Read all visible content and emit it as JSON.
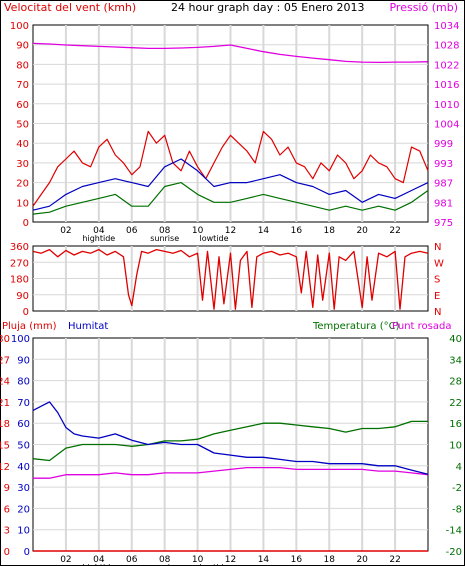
{
  "header": {
    "left_label": "Velocitat del vent (kmh)",
    "title": "24 hour graph day : 05 Enero 2013",
    "right_label": "Pressió (mb)"
  },
  "colors": {
    "red": "#e00000",
    "blue": "#0000c0",
    "green": "#007000",
    "magenta": "#e000e0",
    "grid": "#d8d8d8",
    "grid_dark": "#bfbfbf"
  },
  "x_axis": {
    "hour_labels": [
      "02",
      "04",
      "06",
      "08",
      "10",
      "12",
      "14",
      "16",
      "18",
      "20",
      "22"
    ],
    "tide_labels": [
      {
        "text": "hightide",
        "hour": 4
      },
      {
        "text": "sunrise",
        "hour": 8
      },
      {
        "text": "lowtide",
        "hour": 11
      }
    ]
  },
  "chart_data": [
    {
      "type": "line",
      "name": "wind-pressure",
      "xlim": [
        0,
        24
      ],
      "left_axis": {
        "label": "Velocitat del vent (kmh)",
        "ylim": [
          0,
          100
        ],
        "ticks": [
          0,
          10,
          20,
          30,
          40,
          50,
          60,
          70,
          80,
          90,
          100
        ]
      },
      "right_axis": {
        "label": "Pressió (mb)",
        "ylim": [
          975,
          1034
        ],
        "ticks": [
          975,
          981,
          987,
          993,
          999,
          1004,
          1010,
          1016,
          1022,
          1028,
          1034
        ]
      },
      "series": [
        {
          "role": "wind-gust",
          "color": "red",
          "axis": "left",
          "x": [
            0,
            0.5,
            1,
            1.5,
            2,
            2.5,
            3,
            3.5,
            4,
            4.5,
            5,
            5.5,
            6,
            6.5,
            7,
            7.5,
            8,
            8.5,
            9,
            9.5,
            10,
            10.5,
            11,
            11.5,
            12,
            12.5,
            13,
            13.5,
            14,
            14.5,
            15,
            15.5,
            16,
            16.5,
            17,
            17.5,
            18,
            18.5,
            19,
            19.5,
            20,
            20.5,
            21,
            21.5,
            22,
            22.5,
            23,
            23.5,
            24
          ],
          "values": [
            8,
            14,
            20,
            28,
            32,
            36,
            30,
            28,
            38,
            42,
            34,
            30,
            24,
            28,
            46,
            40,
            44,
            30,
            26,
            36,
            28,
            22,
            30,
            38,
            44,
            40,
            36,
            30,
            46,
            42,
            34,
            38,
            30,
            28,
            22,
            30,
            26,
            34,
            30,
            22,
            26,
            34,
            30,
            28,
            22,
            20,
            38,
            36,
            26
          ]
        },
        {
          "role": "wind-average",
          "color": "blue",
          "axis": "left",
          "x": [
            0,
            1,
            2,
            3,
            4,
            5,
            6,
            7,
            8,
            9,
            10,
            11,
            12,
            13,
            14,
            15,
            16,
            17,
            18,
            19,
            20,
            21,
            22,
            23,
            24
          ],
          "values": [
            6,
            8,
            14,
            18,
            20,
            22,
            20,
            18,
            28,
            32,
            26,
            18,
            20,
            20,
            22,
            24,
            20,
            18,
            14,
            16,
            10,
            14,
            12,
            16,
            20
          ]
        },
        {
          "role": "wind-min",
          "color": "green",
          "axis": "left",
          "x": [
            0,
            1,
            2,
            3,
            4,
            5,
            6,
            7,
            8,
            9,
            10,
            11,
            12,
            13,
            14,
            15,
            16,
            17,
            18,
            19,
            20,
            21,
            22,
            23,
            24
          ],
          "values": [
            4,
            5,
            8,
            10,
            12,
            14,
            8,
            8,
            18,
            20,
            14,
            10,
            10,
            12,
            14,
            12,
            10,
            8,
            6,
            8,
            6,
            8,
            6,
            10,
            16
          ]
        },
        {
          "role": "pressure",
          "color": "magenta",
          "axis": "right",
          "x": [
            0,
            1,
            2,
            3,
            4,
            5,
            6,
            7,
            8,
            9,
            10,
            11,
            12,
            13,
            14,
            15,
            16,
            17,
            18,
            19,
            20,
            21,
            22,
            23,
            24
          ],
          "values": [
            1028.5,
            1028.3,
            1028,
            1027.8,
            1027.6,
            1027.4,
            1027.2,
            1027,
            1027,
            1027.1,
            1027.3,
            1027.6,
            1028,
            1027,
            1026,
            1025.2,
            1024.6,
            1024.1,
            1023.6,
            1023.1,
            1022.9,
            1022.8,
            1022.9,
            1022.9,
            1023
          ]
        }
      ]
    },
    {
      "type": "line",
      "name": "wind-direction",
      "xlim": [
        0,
        24
      ],
      "left_axis": {
        "ylim": [
          0,
          360
        ],
        "ticks": [
          0,
          90,
          180,
          270,
          360
        ]
      },
      "right_axis": {
        "ticks": [
          "N",
          "W",
          "S",
          "E",
          "N"
        ]
      },
      "series": [
        {
          "role": "direction",
          "color": "red",
          "axis": "left",
          "x": [
            0,
            0.5,
            1,
            1.5,
            2,
            2.5,
            3,
            3.5,
            4,
            4.5,
            5,
            5.5,
            5.8,
            6,
            6.3,
            6.6,
            7,
            7.5,
            8,
            8.5,
            9,
            9.5,
            10,
            10.3,
            10.6,
            11,
            11.3,
            11.6,
            12,
            12.3,
            12.6,
            13,
            13.3,
            13.6,
            14,
            14.5,
            15,
            15.5,
            16,
            16.3,
            16.6,
            17,
            17.3,
            17.6,
            18,
            18.3,
            18.6,
            19,
            19.5,
            20,
            20.3,
            20.6,
            21,
            21.5,
            22,
            22.3,
            22.6,
            23,
            23.5,
            24
          ],
          "values": [
            330,
            320,
            340,
            300,
            335,
            310,
            330,
            320,
            340,
            310,
            330,
            300,
            90,
            30,
            200,
            330,
            320,
            340,
            330,
            320,
            335,
            300,
            320,
            60,
            330,
            10,
            300,
            40,
            320,
            10,
            280,
            330,
            20,
            300,
            320,
            330,
            310,
            320,
            300,
            100,
            330,
            20,
            310,
            60,
            320,
            10,
            300,
            280,
            330,
            20,
            300,
            60,
            320,
            300,
            330,
            10,
            300,
            320,
            330,
            320
          ]
        }
      ]
    },
    {
      "type": "line",
      "name": "rain-humidity-temperature",
      "xlim": [
        0,
        24
      ],
      "left_axis_rain": {
        "label": "Pluja (mm)",
        "ylim": [
          0,
          30
        ],
        "ticks": [
          0,
          3,
          6,
          9,
          12,
          15,
          18,
          21,
          24,
          27,
          30
        ]
      },
      "left_axis_humidity": {
        "label": "Humitat",
        "ylim": [
          0,
          100
        ],
        "ticks": [
          0,
          10,
          20,
          30,
          40,
          50,
          60,
          70,
          80,
          90,
          100
        ]
      },
      "right_axis": {
        "label_temperature": "Temperatura (°C)",
        "label_dewpoint": "Punt rosada",
        "ylim": [
          -20,
          40
        ],
        "ticks": [
          -20,
          -14,
          -8,
          -2,
          4,
          10,
          16,
          22,
          28,
          34,
          40
        ]
      },
      "series": [
        {
          "role": "humidity",
          "color": "blue",
          "axis": "humidity",
          "x": [
            0,
            0.5,
            1,
            1.5,
            2,
            2.5,
            3,
            4,
            5,
            6,
            7,
            8,
            9,
            10,
            11,
            12,
            13,
            14,
            15,
            16,
            17,
            18,
            19,
            20,
            21,
            22,
            23,
            24
          ],
          "values": [
            66,
            68,
            70,
            65,
            58,
            55,
            54,
            53,
            55,
            52,
            50,
            51,
            50,
            50,
            46,
            45,
            44,
            44,
            43,
            42,
            42,
            41,
            41,
            41,
            40,
            40,
            38,
            36
          ]
        },
        {
          "role": "temperature",
          "color": "green",
          "axis": "temp",
          "x": [
            0,
            1,
            2,
            3,
            4,
            5,
            6,
            7,
            8,
            9,
            10,
            11,
            12,
            13,
            14,
            15,
            16,
            17,
            18,
            19,
            20,
            21,
            22,
            23,
            24
          ],
          "values": [
            6,
            5.5,
            9,
            10,
            10,
            10,
            9.5,
            10,
            11,
            11,
            11.5,
            13,
            14,
            15,
            16,
            16,
            15.5,
            15,
            14.5,
            13.5,
            14.5,
            14.5,
            15,
            16.5,
            16.5
          ]
        },
        {
          "role": "dewpoint",
          "color": "magenta",
          "axis": "temp",
          "x": [
            0,
            1,
            2,
            3,
            4,
            5,
            6,
            7,
            8,
            9,
            10,
            11,
            12,
            13,
            14,
            15,
            16,
            17,
            18,
            19,
            20,
            21,
            22,
            23,
            24
          ],
          "values": [
            0.5,
            0.5,
            1.5,
            1.5,
            1.5,
            2,
            1.5,
            1.5,
            2,
            2,
            2,
            2.5,
            3,
            3.5,
            3.5,
            3.5,
            3,
            3,
            3,
            3,
            3,
            2.5,
            2.5,
            2,
            1.5
          ]
        },
        {
          "role": "rain",
          "color": "red",
          "axis": "rain",
          "x": [
            0,
            24
          ],
          "values": [
            0,
            0
          ]
        }
      ]
    }
  ],
  "panels": {
    "panel3_labels": {
      "rain": "Pluja (mm)",
      "humidity": "Humitat",
      "temperature": "Temperatura (°C)",
      "dewpoint": "Punt rosada"
    }
  }
}
